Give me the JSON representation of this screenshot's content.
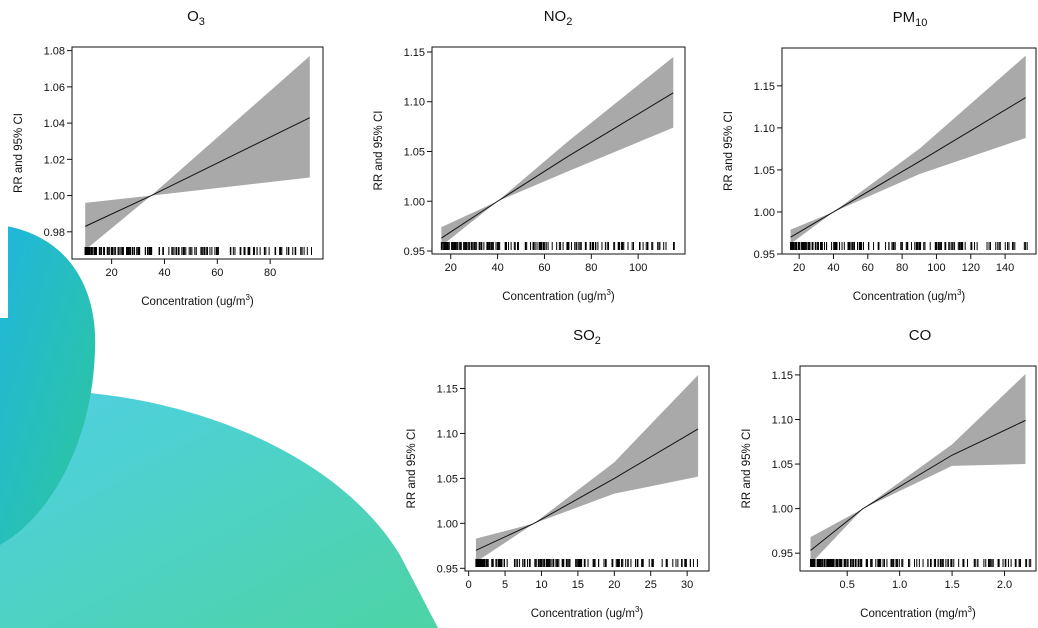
{
  "chart_data": [
    {
      "type": "line",
      "title": "O3",
      "title_main": "O",
      "title_sub": "3",
      "xlabel": "Concentration (ug/m3)",
      "xlabel_main": "Concentration (ug/m",
      "xlabel_sup": "3",
      "xlabel_end": ")",
      "ylabel": "RR and 95% CI",
      "xlim": [
        5,
        100
      ],
      "ylim": [
        0.965,
        1.082
      ],
      "xticks": [
        20,
        40,
        60,
        80
      ],
      "yticks": [
        0.98,
        1.0,
        1.02,
        1.04,
        1.06,
        1.08
      ],
      "yticklabels": [
        "0.98",
        "1.00",
        "1.02",
        "1.04",
        "1.06",
        "1.08"
      ],
      "series": [
        {
          "x": [
            10,
            35,
            95
          ],
          "y": [
            0.983,
            1.0,
            1.043
          ]
        }
      ],
      "ci": {
        "x": [
          10,
          35,
          95
        ],
        "lower": [
          0.97,
          1.0,
          1.01
        ],
        "upper": [
          0.996,
          1.0,
          1.077
        ]
      },
      "rug_range": [
        10,
        96
      ]
    },
    {
      "type": "line",
      "title": "NO2",
      "title_main": "NO",
      "title_sub": "2",
      "xlabel": "Concentration (ug/m3)",
      "xlabel_main": "Concentration (ug/m",
      "xlabel_sup": "3",
      "xlabel_end": ")",
      "ylabel": "RR and 95% CI",
      "xlim": [
        12,
        120
      ],
      "ylim": [
        0.947,
        1.155
      ],
      "xticks": [
        20,
        40,
        60,
        80,
        100
      ],
      "yticks": [
        0.95,
        1.0,
        1.05,
        1.1,
        1.15
      ],
      "yticklabels": [
        "0.95",
        "1.00",
        "1.05",
        "1.10",
        "1.15"
      ],
      "series": [
        {
          "x": [
            16,
            40,
            70,
            115
          ],
          "y": [
            0.963,
            1.0,
            1.045,
            1.109
          ]
        }
      ],
      "ci": {
        "x": [
          16,
          40,
          70,
          115
        ],
        "lower": [
          0.955,
          1.0,
          1.03,
          1.074
        ],
        "upper": [
          0.974,
          1.0,
          1.06,
          1.145
        ]
      },
      "rug_range": [
        16,
        116
      ]
    },
    {
      "type": "line",
      "title": "PM10",
      "title_main": "PM",
      "title_sub": "10",
      "xlabel": "Concentration (ug/m3)",
      "xlabel_main": "Concentration (ug/m",
      "xlabel_sup": "3",
      "xlabel_end": ")",
      "ylabel": "RR and 95% CI",
      "xlim": [
        10,
        158
      ],
      "ylim": [
        0.95,
        1.195
      ],
      "xticks": [
        20,
        40,
        60,
        80,
        100,
        120,
        140
      ],
      "yticks": [
        0.95,
        1.0,
        1.05,
        1.1,
        1.15
      ],
      "yticklabels": [
        "0.95",
        "1.00",
        "1.05",
        "1.10",
        "1.15"
      ],
      "series": [
        {
          "x": [
            15,
            40,
            90,
            152
          ],
          "y": [
            0.97,
            1.0,
            1.06,
            1.136
          ]
        }
      ],
      "ci": {
        "x": [
          15,
          40,
          90,
          152
        ],
        "lower": [
          0.962,
          1.0,
          1.045,
          1.088
        ],
        "upper": [
          0.979,
          1.0,
          1.075,
          1.186
        ]
      },
      "rug_range": [
        15,
        155
      ]
    },
    {
      "type": "line",
      "title": "SO2",
      "title_main": "SO",
      "title_sub": "2",
      "xlabel": "Concentration (ug/m3)",
      "xlabel_main": "Concentration (ug/m",
      "xlabel_sup": "3",
      "xlabel_end": ")",
      "ylabel": "RR and 95% CI",
      "xlim": [
        -0.5,
        33
      ],
      "ylim": [
        0.947,
        1.175
      ],
      "xticks": [
        0,
        5,
        10,
        15,
        20,
        25,
        30
      ],
      "yticks": [
        0.95,
        1.0,
        1.05,
        1.1,
        1.15
      ],
      "yticklabels": [
        "0.95",
        "1.00",
        "1.05",
        "1.10",
        "1.15"
      ],
      "series": [
        {
          "x": [
            1,
            9,
            20,
            31.5
          ],
          "y": [
            0.97,
            1.0,
            1.05,
            1.105
          ]
        }
      ],
      "ci": {
        "x": [
          1,
          9,
          20,
          31.5
        ],
        "lower": [
          0.957,
          1.0,
          1.033,
          1.052
        ],
        "upper": [
          0.983,
          1.0,
          1.068,
          1.165
        ]
      },
      "rug_range": [
        1,
        31.5
      ]
    },
    {
      "type": "line",
      "title": "CO",
      "title_main": "CO",
      "title_sub": "",
      "xlabel": "Concentration (mg/m3)",
      "xlabel_main": "Concentration (mg/m",
      "xlabel_sup": "3",
      "xlabel_end": ")",
      "ylabel": "RR and 95% CI",
      "xlim": [
        0.05,
        2.3
      ],
      "ylim": [
        0.93,
        1.16
      ],
      "xticks": [
        0.5,
        1.0,
        1.5,
        2.0
      ],
      "yticks": [
        0.95,
        1.0,
        1.05,
        1.1,
        1.15
      ],
      "yticklabels": [
        "0.95",
        "1.00",
        "1.05",
        "1.10",
        "1.15"
      ],
      "series": [
        {
          "x": [
            0.15,
            0.65,
            1.5,
            2.2
          ],
          "y": [
            0.953,
            1.0,
            1.06,
            1.099
          ]
        }
      ],
      "ci": {
        "x": [
          0.15,
          0.65,
          1.5,
          2.2
        ],
        "lower": [
          0.938,
          1.0,
          1.048,
          1.05
        ],
        "upper": [
          0.968,
          1.0,
          1.072,
          1.151
        ]
      },
      "rug_range": [
        0.15,
        2.25
      ]
    }
  ]
}
